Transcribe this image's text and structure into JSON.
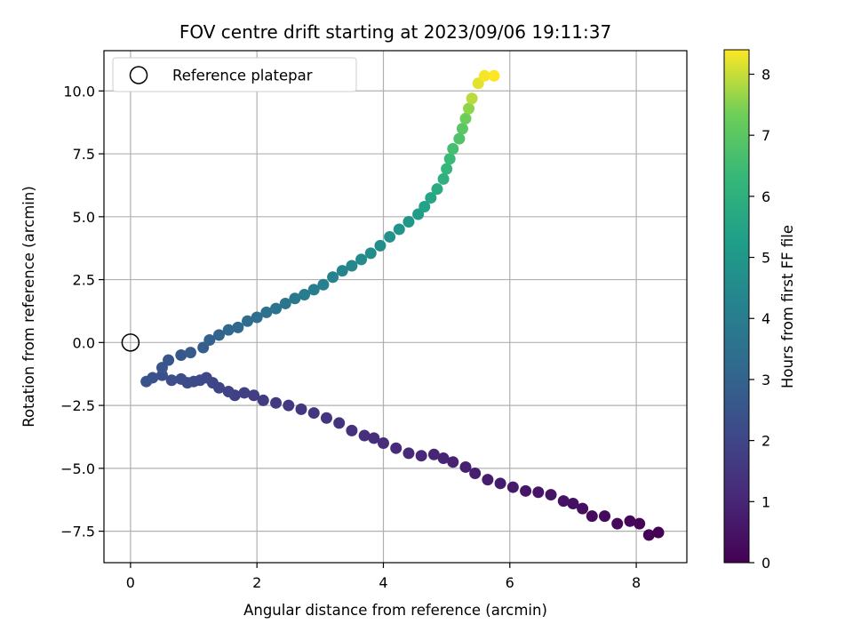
{
  "chart_data": {
    "type": "scatter",
    "title": "FOV centre drift starting at 2023/09/06 19:11:37",
    "xlabel": "Angular distance from reference (arcmin)",
    "ylabel": "Rotation from reference (arcmin)",
    "xlim": [
      -0.42,
      8.8
    ],
    "ylim": [
      -8.75,
      11.6
    ],
    "xticks": [
      0,
      2,
      4,
      6,
      8
    ],
    "xtick_labels": [
      "0",
      "2",
      "4",
      "6",
      "8"
    ],
    "yticks": [
      -7.5,
      -5.0,
      -2.5,
      0.0,
      2.5,
      5.0,
      7.5,
      10.0
    ],
    "ytick_labels": [
      "−7.5",
      "−5.0",
      "−2.5",
      "0.0",
      "2.5",
      "5.0",
      "7.5",
      "10.0"
    ],
    "grid": true,
    "legend": {
      "placement": "top-left",
      "entries": [
        "Reference platepar"
      ]
    },
    "reference_point": {
      "x": 0.0,
      "y": 0.0,
      "marker": "open-circle"
    },
    "colorbar": {
      "label": "Hours from first FF file",
      "colormap": "viridis",
      "range": [
        0,
        8.4
      ],
      "ticks": [
        0,
        1,
        2,
        3,
        4,
        5,
        6,
        7,
        8
      ],
      "tick_labels": [
        "0",
        "1",
        "2",
        "3",
        "4",
        "5",
        "6",
        "7",
        "8"
      ]
    },
    "series": [
      {
        "points": [
          [
            8.35,
            -7.55,
            0.0
          ],
          [
            8.2,
            -7.65,
            0.05
          ],
          [
            8.05,
            -7.2,
            0.1
          ],
          [
            7.9,
            -7.1,
            0.15
          ],
          [
            7.7,
            -7.2,
            0.2
          ],
          [
            7.5,
            -6.9,
            0.25
          ],
          [
            7.3,
            -6.9,
            0.3
          ],
          [
            7.15,
            -6.6,
            0.35
          ],
          [
            7.0,
            -6.4,
            0.4
          ],
          [
            6.85,
            -6.3,
            0.45
          ],
          [
            6.65,
            -6.05,
            0.5
          ],
          [
            6.45,
            -5.95,
            0.55
          ],
          [
            6.25,
            -5.9,
            0.6
          ],
          [
            6.05,
            -5.75,
            0.65
          ],
          [
            5.85,
            -5.6,
            0.7
          ],
          [
            5.65,
            -5.45,
            0.75
          ],
          [
            5.45,
            -5.2,
            0.8
          ],
          [
            5.3,
            -4.95,
            0.85
          ],
          [
            5.1,
            -4.75,
            0.9
          ],
          [
            4.95,
            -4.6,
            0.95
          ],
          [
            4.8,
            -4.45,
            1.0
          ],
          [
            4.6,
            -4.5,
            1.05
          ],
          [
            4.4,
            -4.4,
            1.1
          ],
          [
            4.2,
            -4.2,
            1.15
          ],
          [
            4.0,
            -4.0,
            1.2
          ],
          [
            3.85,
            -3.8,
            1.25
          ],
          [
            3.7,
            -3.7,
            1.3
          ],
          [
            3.5,
            -3.5,
            1.35
          ],
          [
            3.3,
            -3.2,
            1.4
          ],
          [
            3.1,
            -3.0,
            1.45
          ],
          [
            2.9,
            -2.8,
            1.5
          ],
          [
            2.7,
            -2.65,
            1.55
          ],
          [
            2.5,
            -2.5,
            1.6
          ],
          [
            2.3,
            -2.4,
            1.65
          ],
          [
            2.1,
            -2.3,
            1.7
          ],
          [
            1.95,
            -2.1,
            1.75
          ],
          [
            1.8,
            -2.0,
            1.8
          ],
          [
            1.65,
            -2.1,
            1.85
          ],
          [
            1.55,
            -1.95,
            1.9
          ],
          [
            1.4,
            -1.8,
            1.95
          ],
          [
            1.3,
            -1.6,
            2.0
          ],
          [
            1.2,
            -1.4,
            2.05
          ],
          [
            1.1,
            -1.5,
            2.1
          ],
          [
            1.0,
            -1.55,
            2.15
          ],
          [
            0.9,
            -1.6,
            2.2
          ],
          [
            0.8,
            -1.45,
            2.25
          ],
          [
            0.65,
            -1.5,
            2.3
          ],
          [
            0.5,
            -1.3,
            2.35
          ],
          [
            0.35,
            -1.4,
            2.4
          ],
          [
            0.25,
            -1.55,
            2.45
          ],
          [
            0.5,
            -1.0,
            2.5
          ],
          [
            0.6,
            -0.7,
            2.55
          ],
          [
            0.8,
            -0.5,
            2.6
          ],
          [
            0.95,
            -0.4,
            2.7
          ],
          [
            1.15,
            -0.2,
            2.8
          ],
          [
            1.25,
            0.1,
            2.9
          ],
          [
            1.4,
            0.3,
            3.0
          ],
          [
            1.55,
            0.5,
            3.1
          ],
          [
            1.7,
            0.6,
            3.2
          ],
          [
            1.85,
            0.85,
            3.3
          ],
          [
            2.0,
            1.0,
            3.4
          ],
          [
            2.15,
            1.2,
            3.5
          ],
          [
            2.3,
            1.35,
            3.6
          ],
          [
            2.45,
            1.55,
            3.7
          ],
          [
            2.6,
            1.75,
            3.8
          ],
          [
            2.75,
            1.9,
            3.9
          ],
          [
            2.9,
            2.1,
            4.0
          ],
          [
            3.05,
            2.3,
            4.1
          ],
          [
            3.2,
            2.6,
            4.2
          ],
          [
            3.35,
            2.85,
            4.3
          ],
          [
            3.5,
            3.05,
            4.4
          ],
          [
            3.65,
            3.3,
            4.5
          ],
          [
            3.8,
            3.55,
            4.6
          ],
          [
            3.95,
            3.85,
            4.7
          ],
          [
            4.1,
            4.2,
            4.8
          ],
          [
            4.25,
            4.5,
            4.9
          ],
          [
            4.4,
            4.8,
            5.0
          ],
          [
            4.55,
            5.1,
            5.2
          ],
          [
            4.65,
            5.4,
            5.4
          ],
          [
            4.75,
            5.75,
            5.6
          ],
          [
            4.85,
            6.1,
            5.8
          ],
          [
            4.95,
            6.5,
            6.0
          ],
          [
            5.0,
            6.9,
            6.2
          ],
          [
            5.05,
            7.3,
            6.4
          ],
          [
            5.1,
            7.7,
            6.6
          ],
          [
            5.2,
            8.1,
            6.8
          ],
          [
            5.25,
            8.5,
            7.0
          ],
          [
            5.3,
            8.9,
            7.3
          ],
          [
            5.35,
            9.3,
            7.6
          ],
          [
            5.4,
            9.7,
            7.9
          ],
          [
            5.5,
            10.3,
            8.2
          ],
          [
            5.6,
            10.6,
            8.35
          ],
          [
            5.75,
            10.6,
            8.4
          ]
        ],
        "point_format": "[x, y, hours]"
      }
    ]
  }
}
